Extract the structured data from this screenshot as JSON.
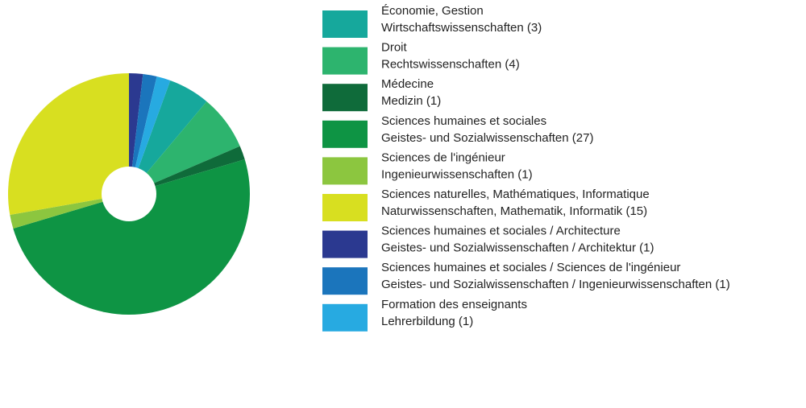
{
  "chart_data": {
    "type": "pie",
    "categories": [
      "Économie, Gestion",
      "Droit",
      "Médecine",
      "Sciences humaines et sociales",
      "Sciences de l'ingénieur",
      "Sciences naturelles, Mathématiques, Informatique",
      "Sciences humaines et sociales / Architecture",
      "Sciences humaines et sociales / Sciences de l'ingénieur",
      "Formation des enseignants"
    ],
    "categories_de": [
      "Wirtschaftswissenschaften",
      "Rechtswissenschaften",
      "Medizin",
      "Geistes- und Sozialwissenschaften",
      "Ingenieurwissenschaften",
      "Naturwissenschaften, Mathematik, Informatik",
      "Geistes- und Sozialwissenschaften / Architektur",
      "Geistes- und Sozialwissenschaften / Ingenieurwissenschaften",
      "Lehrerbildung"
    ],
    "values": [
      3,
      4,
      1,
      27,
      1,
      15,
      1,
      1,
      1
    ],
    "value_labels": [
      "(3)",
      "(4)",
      "(1)",
      "(27)",
      "(1)",
      "(15)",
      "(1)",
      "(1)",
      "(1)"
    ],
    "colors": [
      "#16a89c",
      "#2db46e",
      "#0f6b3a",
      "#0e9444",
      "#8cc63f",
      "#d8df20",
      "#2b3990",
      "#1b75bc",
      "#27aae1"
    ],
    "donut": true
  }
}
